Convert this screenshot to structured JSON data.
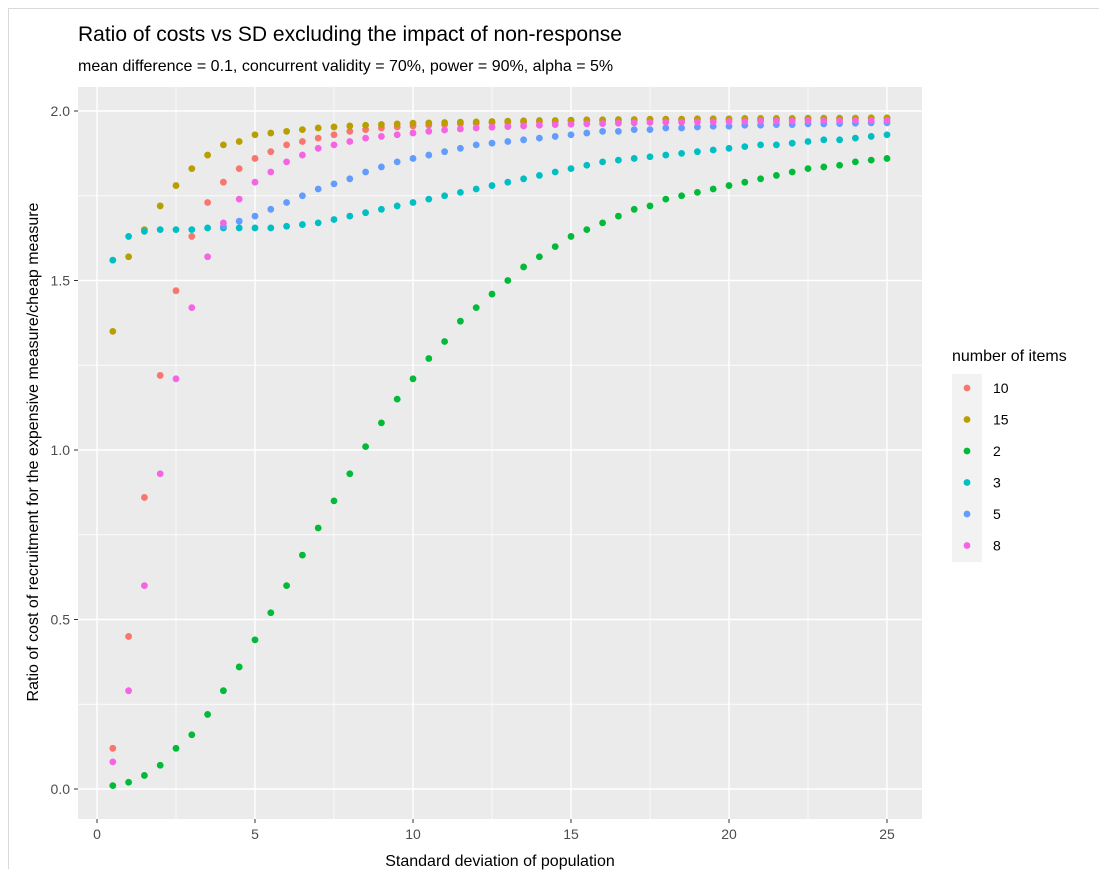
{
  "chart_data": {
    "type": "scatter",
    "title": "Ratio of costs vs SD excluding the impact of non-response",
    "subtitle": "mean difference = 0.1, concurrent validity = 70%, power = 90%, alpha = 5%",
    "xlabel": "Standard deviation of population",
    "ylabel": "Ratio of cost of recruitment for the expensive measure/cheap measure",
    "xlim": [
      -0.6,
      26
    ],
    "ylim": [
      -0.1,
      2.1
    ],
    "x_ticks": [
      0,
      5,
      10,
      15,
      20,
      25
    ],
    "y_ticks": [
      0.0,
      0.5,
      1.0,
      1.5,
      2.0
    ],
    "x_tick_labels": [
      "0",
      "5",
      "10",
      "15",
      "20",
      "25"
    ],
    "y_tick_labels": [
      "0.0",
      "0.5",
      "1.0",
      "1.5",
      "2.0"
    ],
    "grid": true,
    "legend": {
      "title": "number of items",
      "placement": "right",
      "entries": [
        "10",
        "15",
        "2",
        "3",
        "5",
        "8"
      ]
    },
    "x": [
      0.5,
      1,
      1.5,
      2,
      2.5,
      3,
      3.5,
      4,
      4.5,
      5,
      5.5,
      6,
      6.5,
      7,
      7.5,
      8,
      8.5,
      9,
      9.5,
      10,
      10.5,
      11,
      11.5,
      12,
      12.5,
      13,
      13.5,
      14,
      14.5,
      15,
      15.5,
      16,
      16.5,
      17,
      17.5,
      18,
      18.5,
      19,
      19.5,
      20,
      20.5,
      21,
      21.5,
      22,
      22.5,
      23,
      23.5,
      24,
      24.5,
      25
    ],
    "series": [
      {
        "name": "10",
        "color": "#F8766D",
        "values": [
          0.12,
          0.45,
          0.86,
          1.22,
          1.47,
          1.63,
          1.73,
          1.79,
          1.83,
          1.86,
          1.88,
          1.9,
          1.91,
          1.92,
          1.93,
          1.94,
          1.945,
          1.95,
          1.953,
          1.956,
          1.958,
          1.96,
          1.962,
          1.964,
          1.965,
          1.966,
          1.967,
          1.968,
          1.969,
          1.97,
          1.971,
          1.972,
          1.972,
          1.973,
          1.973,
          1.974,
          1.974,
          1.975,
          1.975,
          1.975,
          1.976,
          1.976,
          1.976,
          1.977,
          1.977,
          1.977,
          1.977,
          1.978,
          1.978,
          1.978
        ]
      },
      {
        "name": "15",
        "color": "#B79F00",
        "values": [
          1.35,
          1.57,
          1.65,
          1.72,
          1.78,
          1.83,
          1.87,
          1.9,
          1.91,
          1.93,
          1.935,
          1.94,
          1.945,
          1.95,
          1.953,
          1.956,
          1.958,
          1.96,
          1.962,
          1.964,
          1.965,
          1.966,
          1.967,
          1.968,
          1.969,
          1.97,
          1.971,
          1.972,
          1.972,
          1.973,
          1.974,
          1.974,
          1.975,
          1.975,
          1.976,
          1.976,
          1.976,
          1.977,
          1.977,
          1.977,
          1.978,
          1.978,
          1.978,
          1.978,
          1.979,
          1.979,
          1.979,
          1.979,
          1.98,
          1.98
        ]
      },
      {
        "name": "2",
        "color": "#00BA38",
        "values": [
          0.01,
          0.02,
          0.04,
          0.07,
          0.12,
          0.16,
          0.22,
          0.29,
          0.36,
          0.44,
          0.52,
          0.6,
          0.69,
          0.77,
          0.85,
          0.93,
          1.01,
          1.08,
          1.15,
          1.21,
          1.27,
          1.32,
          1.38,
          1.42,
          1.46,
          1.5,
          1.54,
          1.57,
          1.6,
          1.63,
          1.65,
          1.67,
          1.69,
          1.71,
          1.72,
          1.74,
          1.75,
          1.76,
          1.77,
          1.78,
          1.79,
          1.8,
          1.81,
          1.82,
          1.83,
          1.835,
          1.84,
          1.85,
          1.855,
          1.86
        ]
      },
      {
        "name": "3",
        "color": "#00BFC4",
        "values": [
          1.56,
          1.63,
          1.645,
          1.65,
          1.65,
          1.65,
          1.655,
          1.655,
          1.655,
          1.655,
          1.655,
          1.66,
          1.665,
          1.67,
          1.68,
          1.69,
          1.7,
          1.71,
          1.72,
          1.73,
          1.74,
          1.75,
          1.76,
          1.77,
          1.78,
          1.79,
          1.8,
          1.81,
          1.82,
          1.83,
          1.84,
          1.85,
          1.855,
          1.86,
          1.865,
          1.87,
          1.875,
          1.88,
          1.885,
          1.89,
          1.895,
          1.9,
          1.9,
          1.905,
          1.91,
          1.915,
          1.915,
          1.92,
          1.925,
          1.93
        ]
      },
      {
        "name": "5",
        "color": "#619CFF",
        "values": [
          null,
          null,
          null,
          null,
          null,
          null,
          null,
          1.66,
          1.675,
          1.69,
          1.71,
          1.73,
          1.75,
          1.77,
          1.785,
          1.8,
          1.82,
          1.835,
          1.85,
          1.86,
          1.87,
          1.88,
          1.89,
          1.9,
          1.905,
          1.91,
          1.915,
          1.92,
          1.925,
          1.93,
          1.935,
          1.94,
          1.94,
          1.945,
          1.945,
          1.95,
          1.95,
          1.953,
          1.955,
          1.955,
          1.958,
          1.958,
          1.96,
          1.96,
          1.962,
          1.962,
          1.963,
          1.964,
          1.965,
          1.965
        ]
      },
      {
        "name": "8",
        "color": "#F564E3",
        "values": [
          0.08,
          0.29,
          0.6,
          0.93,
          1.21,
          1.42,
          1.57,
          1.67,
          1.74,
          1.79,
          1.82,
          1.85,
          1.87,
          1.89,
          1.9,
          1.91,
          1.92,
          1.925,
          1.93,
          1.935,
          1.94,
          1.944,
          1.947,
          1.95,
          1.952,
          1.954,
          1.956,
          1.958,
          1.96,
          1.961,
          1.962,
          1.963,
          1.964,
          1.965,
          1.966,
          1.967,
          1.967,
          1.968,
          1.968,
          1.969,
          1.969,
          1.97,
          1.97,
          1.97,
          1.971,
          1.971,
          1.971,
          1.972,
          1.972,
          1.972
        ]
      }
    ]
  }
}
